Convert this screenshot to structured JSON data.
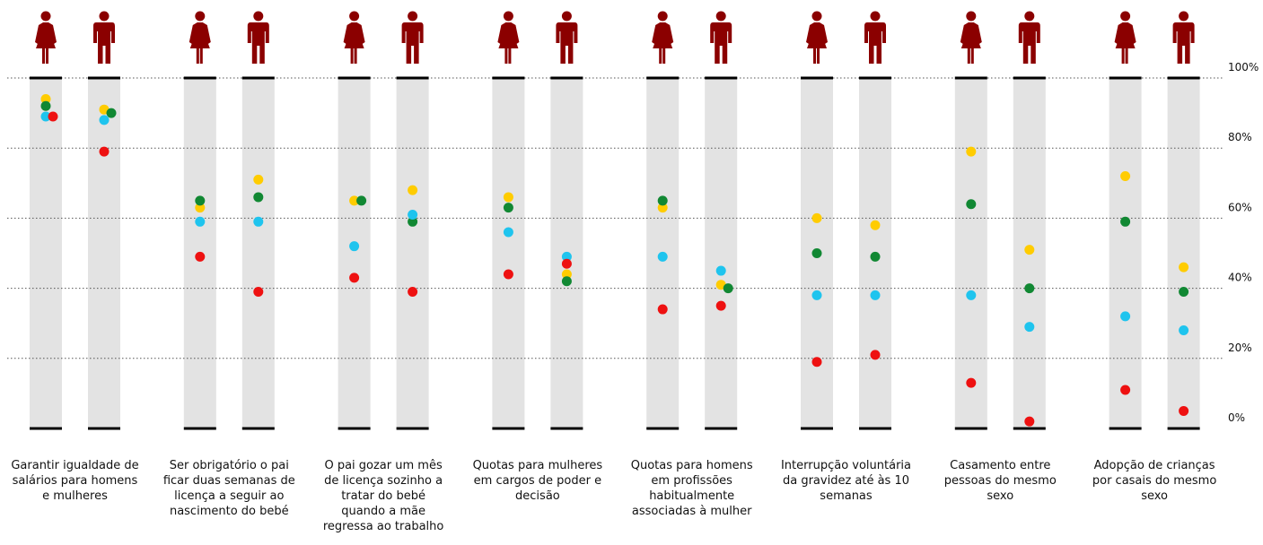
{
  "chart_data": {
    "type": "scatter",
    "title": "",
    "xlabel": "",
    "ylabel": "",
    "ylim": [
      0,
      100
    ],
    "y_tick_labels": [
      "100%",
      "80%",
      "60%",
      "40%",
      "20%",
      "0%"
    ],
    "grid": true,
    "legend": "none",
    "column_icons": [
      "woman-icon",
      "man-icon"
    ],
    "categories": [
      {
        "label_lines": [
          "Garantir igualdade de",
          "salários para homens",
          "e mulheres"
        ],
        "columns": [
          {
            "yellow": 94,
            "green": 92,
            "cyan": 89,
            "red": 89
          },
          {
            "yellow": 91,
            "green": 90,
            "cyan": 88,
            "red": 79
          }
        ]
      },
      {
        "label_lines": [
          "Ser obrigatório o pai",
          "ficar duas semanas de",
          "licença a seguir ao",
          "nascimento do bebé"
        ],
        "columns": [
          {
            "yellow": 63,
            "green": 65,
            "cyan": 59,
            "red": 49
          },
          {
            "yellow": 71,
            "green": 66,
            "cyan": 59,
            "red": 39
          }
        ]
      },
      {
        "label_lines": [
          "O pai gozar um mês",
          "de licença sozinho a",
          "tratar do bebé",
          "quando a mãe",
          "regressa ao trabalho"
        ],
        "columns": [
          {
            "yellow": 65,
            "green": 65,
            "cyan": 52,
            "red": 43
          },
          {
            "yellow": 68,
            "green": 59,
            "cyan": 61,
            "red": 39
          }
        ]
      },
      {
        "label_lines": [
          "Quotas para mulheres",
          "em cargos de poder e",
          "decisão"
        ],
        "columns": [
          {
            "yellow": 66,
            "green": 63,
            "cyan": 56,
            "red": 44
          },
          {
            "yellow": 44,
            "green": 42,
            "cyan": 49,
            "red": 47
          }
        ]
      },
      {
        "label_lines": [
          "Quotas para homens",
          "em profissões",
          "habitualmente",
          "associadas à mulher"
        ],
        "columns": [
          {
            "yellow": 63,
            "green": 65,
            "cyan": 49,
            "red": 34
          },
          {
            "yellow": 41,
            "green": 40,
            "cyan": 45,
            "red": 35
          }
        ]
      },
      {
        "label_lines": [
          "Interrupção voluntária",
          "da gravidez até às 10",
          "semanas"
        ],
        "columns": [
          {
            "yellow": 60,
            "green": 50,
            "cyan": 38,
            "red": 19
          },
          {
            "yellow": 58,
            "green": 49,
            "cyan": 38,
            "red": 21
          }
        ]
      },
      {
        "label_lines": [
          "Casamento entre",
          "pessoas do mesmo",
          "sexo"
        ],
        "columns": [
          {
            "yellow": 79,
            "green": 64,
            "cyan": 38,
            "red": 13
          },
          {
            "yellow": 51,
            "green": 40,
            "cyan": 29,
            "red": 2
          }
        ]
      },
      {
        "label_lines": [
          "Adopção de crianças",
          "por casais do mesmo",
          "sexo"
        ],
        "columns": [
          {
            "yellow": 72,
            "green": 59,
            "cyan": 32,
            "red": 11
          },
          {
            "yellow": 46,
            "green": 39,
            "cyan": 28,
            "red": 5
          }
        ]
      }
    ]
  },
  "colors": {
    "icon": "#8b0000",
    "column_bg": "#e3e3e3",
    "baseline": "#000000",
    "grid": "#555555",
    "yellow": "#ffcc00",
    "green": "#118833",
    "cyan": "#1fc4ee",
    "red": "#ee1111"
  }
}
